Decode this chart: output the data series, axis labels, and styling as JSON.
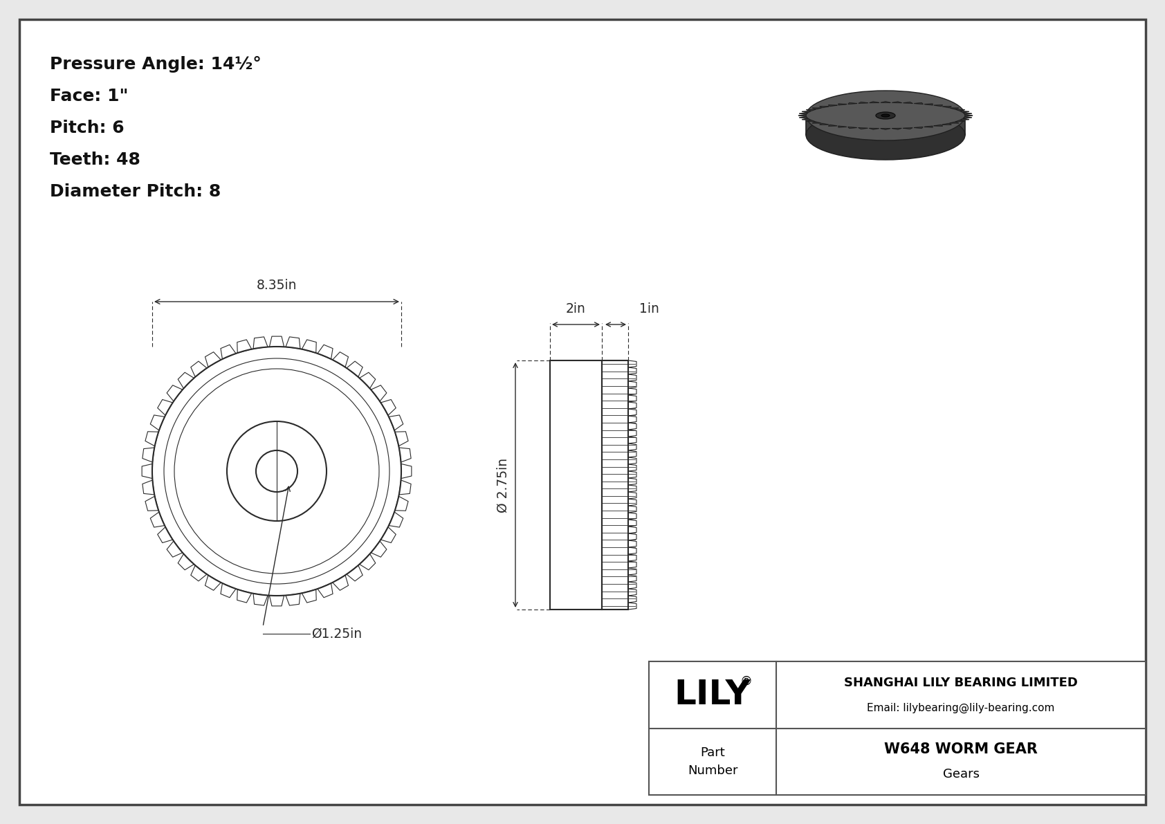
{
  "bg": "#e8e8e8",
  "page_bg": "#ffffff",
  "lc": "#2a2a2a",
  "spec_lines": [
    "Pressure Angle: 14½°",
    "Face: 1\"",
    "Pitch: 6",
    "Teeth: 48",
    "Diameter Pitch: 8"
  ],
  "dim_8_35": "8.35in",
  "dim_1_25": "Ø1.25in",
  "dim_2in": "2in",
  "dim_1in": "1in",
  "dim_2_75": "Ø 2.75in",
  "company_name": "SHANGHAI LILY BEARING LIMITED",
  "company_email": "Email: lilybearing@lily-bearing.com",
  "part_number": "W648 WORM GEAR",
  "category": "Gears",
  "logo_reg": "®"
}
